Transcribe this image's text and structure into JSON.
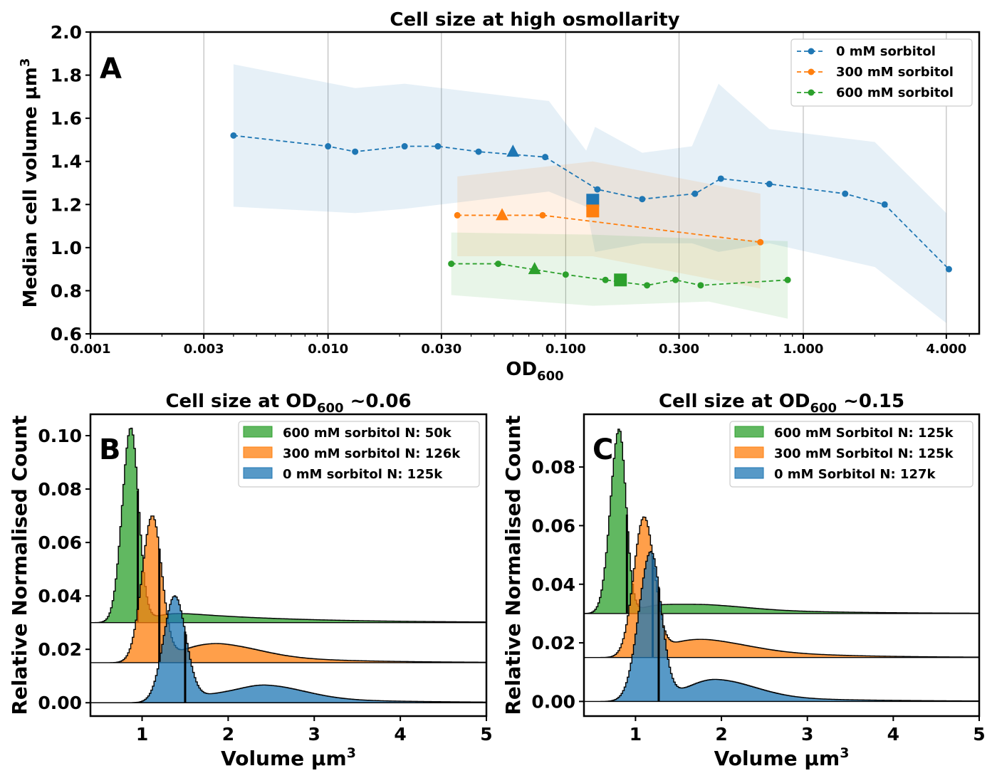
{
  "chart_data": [
    {
      "panel": "A",
      "type": "line",
      "title": "Cell size at high osmollarity",
      "xlabel": "OD",
      "xlabel_sub": "600",
      "ylabel": "Median cell volume µm",
      "ylabel_sup": "3",
      "xscale": "log",
      "xlim": [
        0.001,
        5.5
      ],
      "ylim": [
        0.6,
        2.0
      ],
      "xticks": [
        0.001,
        0.003,
        0.01,
        0.03,
        0.1,
        0.3,
        1.0,
        4.0
      ],
      "xtick_labels": [
        "0.001",
        "0.003",
        "0.010",
        "0.030",
        "0.100",
        "0.300",
        "1.000",
        "4.000"
      ],
      "yticks": [
        0.6,
        0.8,
        1.0,
        1.2,
        1.4,
        1.6,
        1.8,
        2.0
      ],
      "ytick_labels": [
        "0.6",
        "0.8",
        "1.0",
        "1.2",
        "1.4",
        "1.6",
        "1.8",
        "2.0"
      ],
      "grid": "vertical",
      "legend_position": "top-right",
      "series": [
        {
          "name": "0 mM sorbitol",
          "color": "#1f77b4",
          "x": [
            0.004,
            0.01,
            0.013,
            0.021,
            0.029,
            0.043,
            0.082,
            0.136,
            0.21,
            0.35,
            0.45,
            0.72,
            1.5,
            2.2,
            4.1
          ],
          "y": [
            1.52,
            1.47,
            1.445,
            1.47,
            1.47,
            1.445,
            1.42,
            1.27,
            1.225,
            1.25,
            1.32,
            1.295,
            1.25,
            1.2,
            0.9
          ],
          "band_x": [
            0.004,
            0.013,
            0.021,
            0.085,
            0.122,
            0.133,
            0.21,
            0.34,
            0.44,
            0.72,
            2.0,
            4.0
          ],
          "band_upper": [
            1.85,
            1.74,
            1.76,
            1.68,
            1.45,
            1.56,
            1.44,
            1.47,
            1.76,
            1.55,
            1.49,
            1.16
          ],
          "band_lower": [
            1.19,
            1.16,
            1.18,
            1.26,
            1.19,
            0.98,
            1.02,
            1.02,
            0.98,
            1.02,
            0.91,
            0.65
          ],
          "markers": [
            {
              "x": 0.06,
              "y": 1.445,
              "shape": "triangle"
            },
            {
              "x": 0.13,
              "y": 1.22,
              "shape": "square"
            }
          ]
        },
        {
          "name": "300 mM sorbitol",
          "color": "#ff7f0e",
          "x": [
            0.035,
            0.08,
            0.66
          ],
          "y": [
            1.15,
            1.15,
            1.025
          ],
          "band_x": [
            0.035,
            0.13,
            0.66
          ],
          "band_upper": [
            1.33,
            1.4,
            1.25
          ],
          "band_lower": [
            0.96,
            0.96,
            0.81
          ],
          "markers": [
            {
              "x": 0.054,
              "y": 1.15,
              "shape": "triangle"
            },
            {
              "x": 0.13,
              "y": 1.17,
              "shape": "square"
            }
          ]
        },
        {
          "name": "600 mM sorbitol",
          "color": "#2ca02c",
          "x": [
            0.033,
            0.052,
            0.1,
            0.147,
            0.22,
            0.29,
            0.37,
            0.86
          ],
          "y": [
            0.925,
            0.925,
            0.875,
            0.85,
            0.825,
            0.85,
            0.825,
            0.85
          ],
          "band_x": [
            0.033,
            0.13,
            0.4,
            0.86
          ],
          "band_upper": [
            1.07,
            1.06,
            1.04,
            1.03
          ],
          "band_lower": [
            0.78,
            0.73,
            0.75,
            0.67
          ],
          "markers": [
            {
              "x": 0.074,
              "y": 0.9,
              "shape": "triangle"
            },
            {
              "x": 0.17,
              "y": 0.85,
              "shape": "square"
            }
          ]
        }
      ]
    },
    {
      "panel": "B",
      "type": "area",
      "title": "Cell size at OD",
      "title_sub": "600",
      "title_suffix": " ~0.06",
      "xlabel": "Volume µm",
      "xlabel_sup": "3",
      "ylabel": "Relative Normalised Count",
      "xlim": [
        0.4,
        5.0
      ],
      "ylim": [
        -0.005,
        0.108
      ],
      "xticks": [
        1,
        2,
        3,
        4,
        5
      ],
      "yticks": [
        0.0,
        0.02,
        0.04,
        0.06,
        0.08,
        0.1
      ],
      "ytick_labels": [
        "0.00",
        "0.02",
        "0.04",
        "0.06",
        "0.08",
        "0.10"
      ],
      "legend_position": "top-right",
      "series": [
        {
          "name": "600 mM sorbitol N: 50k",
          "color": "#2ca02c",
          "offset": 0.03,
          "peak_x": 0.87,
          "peak_h": 0.073,
          "width_left": 0.1,
          "width_right": 0.09,
          "tail_h": 0.0045,
          "tail_decay": 1.3,
          "bump_x": 1.95,
          "bump_h": 0.0,
          "median": 0.95
        },
        {
          "name": "300 mM sorbitol N: 126k",
          "color": "#ff7f0e",
          "offset": 0.015,
          "peak_x": 1.12,
          "peak_h": 0.055,
          "width_left": 0.12,
          "width_right": 0.11,
          "tail_h": 0.006,
          "tail_decay": 1.0,
          "bump_x": 1.95,
          "bump_h": 0.0035,
          "median": 1.2
        },
        {
          "name": "0 mM sorbitol N: 125k",
          "color": "#1f77b4",
          "offset": 0.0,
          "peak_x": 1.38,
          "peak_h": 0.04,
          "width_left": 0.13,
          "width_right": 0.13,
          "tail_h": 0.004,
          "tail_decay": 1.2,
          "bump_x": 2.45,
          "bump_h": 0.0045,
          "median": 1.5
        }
      ]
    },
    {
      "panel": "C",
      "type": "area",
      "title": "Cell size at OD",
      "title_sub": "600",
      "title_suffix": " ~0.15",
      "xlabel": "Volume µm",
      "xlabel_sup": "3",
      "ylabel": "Relative Normalised Count",
      "xlim": [
        0.4,
        5.0
      ],
      "ylim": [
        -0.005,
        0.098
      ],
      "xticks": [
        1,
        2,
        3,
        4,
        5
      ],
      "yticks": [
        0.0,
        0.02,
        0.04,
        0.06,
        0.08
      ],
      "ytick_labels": [
        "0.00",
        "0.02",
        "0.04",
        "0.06",
        "0.08"
      ],
      "legend_position": "top-right",
      "series": [
        {
          "name": "600 mM Sorbitol N: 125k",
          "color": "#2ca02c",
          "offset": 0.03,
          "peak_x": 0.81,
          "peak_h": 0.063,
          "width_left": 0.1,
          "width_right": 0.08,
          "tail_h": 0.004,
          "tail_decay": 1.1,
          "bump_x": 1.9,
          "bump_h": 0.001,
          "median": 0.9
        },
        {
          "name": "300 mM Sorbitol N: 125k",
          "color": "#ff7f0e",
          "offset": 0.015,
          "peak_x": 1.1,
          "peak_h": 0.048,
          "width_left": 0.12,
          "width_right": 0.12,
          "tail_h": 0.007,
          "tail_decay": 0.9,
          "bump_x": 1.95,
          "bump_h": 0.002,
          "median": 1.2
        },
        {
          "name": "0 mM Sorbitol N: 127k",
          "color": "#1f77b4",
          "offset": 0.0,
          "peak_x": 1.18,
          "peak_h": 0.051,
          "width_left": 0.14,
          "width_right": 0.12,
          "tail_h": 0.003,
          "tail_decay": 1.2,
          "bump_x": 1.95,
          "bump_h": 0.0055,
          "median": 1.27
        }
      ]
    }
  ]
}
